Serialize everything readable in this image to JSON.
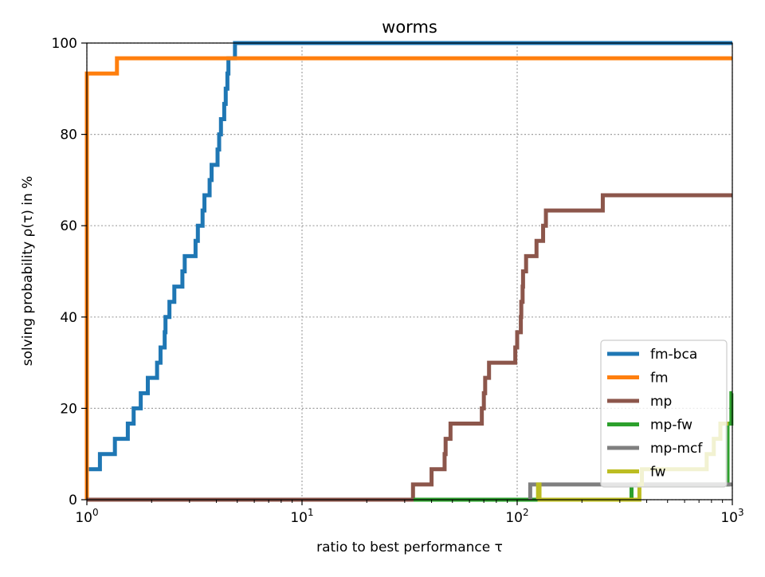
{
  "chart_data": {
    "type": "line",
    "title": "worms",
    "xlabel": "ratio to best performance τ",
    "ylabel": "solving probability ρ(τ) in %",
    "xscale": "log",
    "xlim": [
      1,
      1000
    ],
    "ylim": [
      0,
      100
    ],
    "xticks": [
      {
        "value": 1,
        "base": "10",
        "exp": "0"
      },
      {
        "value": 10,
        "base": "10",
        "exp": "1"
      },
      {
        "value": 100,
        "base": "10",
        "exp": "2"
      },
      {
        "value": 1000,
        "base": "10",
        "exp": "3"
      }
    ],
    "yticks": [
      0,
      20,
      40,
      60,
      80,
      100
    ],
    "grid": true,
    "legend_position": "lower-right",
    "series": [
      {
        "name": "fm-bca",
        "color": "#1f77b4",
        "step": true,
        "points": [
          [
            1.0,
            0
          ],
          [
            1.0,
            6.67
          ],
          [
            1.15,
            10.0
          ],
          [
            1.35,
            13.33
          ],
          [
            1.55,
            16.67
          ],
          [
            1.65,
            20.0
          ],
          [
            1.78,
            23.33
          ],
          [
            1.92,
            26.67
          ],
          [
            2.12,
            30.0
          ],
          [
            2.2,
            33.33
          ],
          [
            2.3,
            36.67
          ],
          [
            2.32,
            40.0
          ],
          [
            2.42,
            43.33
          ],
          [
            2.55,
            46.67
          ],
          [
            2.78,
            50.0
          ],
          [
            2.85,
            53.33
          ],
          [
            3.2,
            56.67
          ],
          [
            3.28,
            60.0
          ],
          [
            3.45,
            63.33
          ],
          [
            3.52,
            66.67
          ],
          [
            3.72,
            70.0
          ],
          [
            3.8,
            73.33
          ],
          [
            4.05,
            76.67
          ],
          [
            4.12,
            80.0
          ],
          [
            4.2,
            83.33
          ],
          [
            4.35,
            86.67
          ],
          [
            4.42,
            90.0
          ],
          [
            4.5,
            93.33
          ],
          [
            4.55,
            96.67
          ],
          [
            4.88,
            100.0
          ],
          [
            1000,
            100.0
          ]
        ]
      },
      {
        "name": "fm",
        "color": "#ff7f0e",
        "step": true,
        "points": [
          [
            1.0,
            0
          ],
          [
            1.0,
            93.33
          ],
          [
            1.38,
            96.67
          ],
          [
            1000,
            96.67
          ]
        ]
      },
      {
        "name": "mp",
        "color": "#8c564b",
        "step": true,
        "points": [
          [
            1.0,
            0
          ],
          [
            32.8,
            3.33
          ],
          [
            40.0,
            6.67
          ],
          [
            46.0,
            10.0
          ],
          [
            46.5,
            13.33
          ],
          [
            49.0,
            16.67
          ],
          [
            68.5,
            20.0
          ],
          [
            70.0,
            23.33
          ],
          [
            71.0,
            26.67
          ],
          [
            74.0,
            30.0
          ],
          [
            98.0,
            33.33
          ],
          [
            100.0,
            36.67
          ],
          [
            104.0,
            40.0
          ],
          [
            104.5,
            43.33
          ],
          [
            106.0,
            46.67
          ],
          [
            106.5,
            50.0
          ],
          [
            110.0,
            53.33
          ],
          [
            123.0,
            56.67
          ],
          [
            132.0,
            60.0
          ],
          [
            136.0,
            63.33
          ],
          [
            250.0,
            66.67
          ],
          [
            1000,
            66.67
          ]
        ]
      },
      {
        "name": "mp-fw",
        "color": "#2ca02c",
        "step": true,
        "points": [
          [
            33.0,
            0
          ],
          [
            340.0,
            0
          ],
          [
            340.0,
            3.33
          ],
          [
            950.0,
            3.33
          ],
          [
            950.0,
            16.67
          ],
          [
            990.0,
            16.67
          ],
          [
            990.0,
            23.33
          ],
          [
            1000,
            23.33
          ]
        ]
      },
      {
        "name": "mp-mcf",
        "color": "#7f7f7f",
        "step": true,
        "points": [
          [
            115.0,
            0
          ],
          [
            115.0,
            3.33
          ],
          [
            1000,
            3.33
          ]
        ]
      },
      {
        "name": "fw",
        "color": "#bcbd22",
        "step": true,
        "points": [
          [
            125.0,
            0
          ],
          [
            125.0,
            3.33
          ],
          [
            127.0,
            3.33
          ],
          [
            127.0,
            0
          ],
          [
            370.0,
            0
          ],
          [
            370.0,
            3.33
          ],
          [
            380.0,
            3.33
          ],
          [
            380.0,
            6.67
          ],
          [
            760.0,
            6.67
          ],
          [
            760.0,
            10.0
          ],
          [
            820.0,
            10.0
          ],
          [
            820.0,
            13.33
          ],
          [
            880.0,
            13.33
          ],
          [
            880.0,
            16.67
          ],
          [
            960.0,
            16.67
          ]
        ]
      }
    ]
  }
}
